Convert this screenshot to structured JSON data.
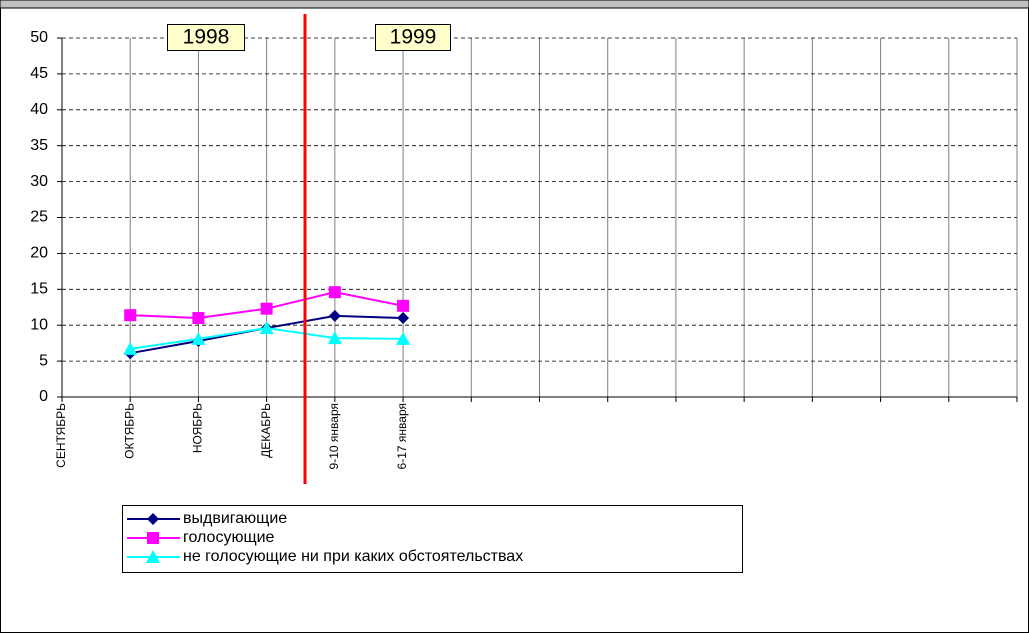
{
  "chart_data": {
    "type": "line",
    "categories": [
      "СЕНТЯБРЬ",
      "ОКТЯБРЬ",
      "НОЯБРЬ",
      "ДЕКАБРЬ",
      "9-10 января",
      "6-17 января",
      null,
      null,
      null,
      null,
      null,
      null,
      null,
      null,
      null
    ],
    "series": [
      {
        "name": "выдвигающие",
        "color": "#000080",
        "marker": "diamond",
        "values": [
          null,
          6.1,
          7.8,
          9.6,
          11.3,
          11.0,
          null,
          null,
          null,
          null,
          null,
          null,
          null,
          null,
          null
        ]
      },
      {
        "name": "голосующие",
        "color": "#ff00ff",
        "marker": "square",
        "values": [
          null,
          11.4,
          11.0,
          12.3,
          14.6,
          12.7,
          null,
          null,
          null,
          null,
          null,
          null,
          null,
          null,
          null
        ]
      },
      {
        "name": "не голосующие ни при каких обстоятельствах",
        "color": "#00ffff",
        "marker": "triangle",
        "values": [
          null,
          6.7,
          8.1,
          9.6,
          8.2,
          8.1,
          null,
          null,
          null,
          null,
          null,
          null,
          null,
          null,
          null
        ]
      }
    ],
    "annotations": [
      "1998",
      "1999"
    ],
    "ylim": [
      0,
      50
    ],
    "yticks": [
      0,
      5,
      10,
      15,
      20,
      25,
      30,
      35,
      40,
      45,
      50
    ],
    "grid": true
  }
}
